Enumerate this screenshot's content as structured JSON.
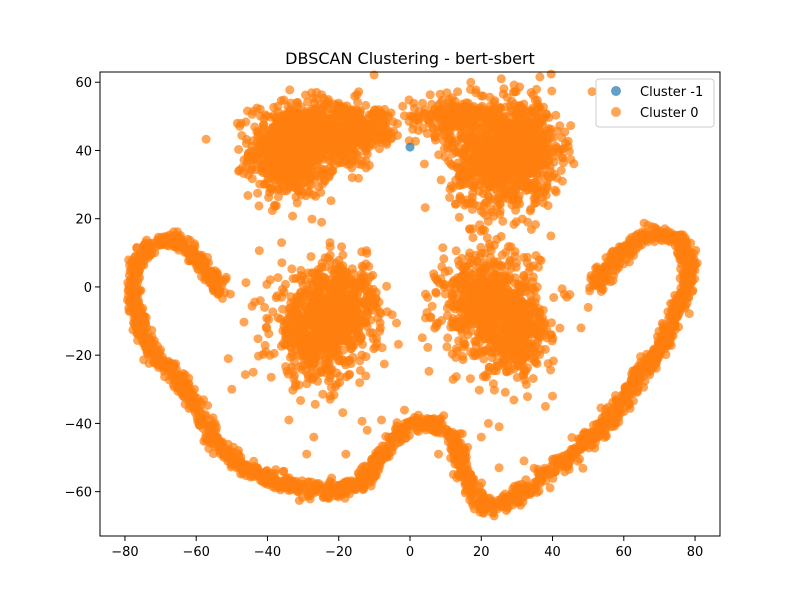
{
  "chart_data": {
    "type": "scatter",
    "title": "DBSCAN Clustering - bert-sbert",
    "xlabel": "",
    "ylabel": "",
    "xlim": [
      -87,
      87
    ],
    "ylim": [
      -73,
      63
    ],
    "xticks": [
      -80,
      -60,
      -40,
      -20,
      0,
      20,
      40,
      60,
      80
    ],
    "yticks": [
      -60,
      -40,
      -20,
      0,
      20,
      40,
      60
    ],
    "xtick_labels": [
      "−80",
      "−60",
      "−40",
      "−20",
      "0",
      "20",
      "40",
      "60",
      "80"
    ],
    "ytick_labels": [
      "−60",
      "−40",
      "−20",
      "0",
      "20",
      "40",
      "60"
    ],
    "grid": false,
    "legend_position": "top-right",
    "series": [
      {
        "name": "Cluster -1",
        "color": "#1f77b4",
        "points": [
          [
            0,
            41
          ]
        ]
      },
      {
        "name": "Cluster 0",
        "color": "#ff7f0e",
        "blobs": [
          {
            "cx": -33,
            "cy": 40,
            "sx": 6,
            "sy": 7,
            "n": 700
          },
          {
            "cx": -20,
            "cy": 45,
            "sx": 6,
            "sy": 5,
            "n": 350
          },
          {
            "cx": -10,
            "cy": 47,
            "sx": 4,
            "sy": 3,
            "n": 100
          },
          {
            "cx": 12,
            "cy": 50,
            "sx": 6,
            "sy": 3,
            "n": 200
          },
          {
            "cx": 25,
            "cy": 38,
            "sx": 7,
            "sy": 8,
            "n": 750
          },
          {
            "cx": 33,
            "cy": 42,
            "sx": 5,
            "sy": 7,
            "n": 300
          },
          {
            "cx": -25,
            "cy": -12,
            "sx": 7,
            "sy": 8,
            "n": 650
          },
          {
            "cx": -18,
            "cy": -5,
            "sx": 5,
            "sy": 6,
            "n": 250
          },
          {
            "cx": 22,
            "cy": -5,
            "sx": 7,
            "sy": 8,
            "n": 650
          },
          {
            "cx": 30,
            "cy": -15,
            "sx": 5,
            "sy": 6,
            "n": 250
          }
        ],
        "curves": [
          {
            "points": [
              [
                -52,
                -2
              ],
              [
                -56,
                3
              ],
              [
                -60,
                9
              ],
              [
                -66,
                14
              ],
              [
                -72,
                13
              ],
              [
                -76,
                8
              ],
              [
                -78,
                0
              ],
              [
                -76,
                -10
              ],
              [
                -72,
                -20
              ],
              [
                -66,
                -25
              ],
              [
                -60,
                -35
              ],
              [
                -55,
                -45
              ],
              [
                -48,
                -52
              ],
              [
                -40,
                -56
              ],
              [
                -30,
                -59
              ],
              [
                -20,
                -60
              ],
              [
                -12,
                -56
              ],
              [
                -7,
                -47
              ],
              [
                0,
                -40
              ],
              [
                8,
                -40
              ],
              [
                13,
                -45
              ],
              [
                15,
                -55
              ],
              [
                20,
                -64
              ],
              [
                28,
                -63
              ],
              [
                35,
                -57
              ],
              [
                45,
                -50
              ],
              [
                55,
                -40
              ],
              [
                62,
                -30
              ],
              [
                70,
                -18
              ],
              [
                76,
                -5
              ],
              [
                79,
                5
              ],
              [
                76,
                14
              ],
              [
                68,
                16
              ],
              [
                60,
                11
              ],
              [
                55,
                5
              ],
              [
                52,
                0
              ]
            ],
            "n": 2200,
            "spread": 1.2
          }
        ],
        "outliers": [
          [
            -44,
            -25
          ],
          [
            -51,
            -21
          ],
          [
            -50,
            -30
          ],
          [
            -34,
            -39
          ],
          [
            -27,
            -44
          ],
          [
            -22,
            -56
          ],
          [
            -18,
            -49
          ],
          [
            -29,
            -49
          ],
          [
            -20,
            -13
          ],
          [
            -12,
            -42
          ],
          [
            -8,
            -39
          ],
          [
            -6,
            -44
          ],
          [
            -3,
            -43
          ],
          [
            8,
            -49
          ],
          [
            14,
            -43
          ],
          [
            20,
            -44
          ],
          [
            25,
            -53
          ],
          [
            32,
            -51
          ],
          [
            38,
            -35
          ],
          [
            40,
            -32
          ],
          [
            48,
            -12
          ],
          [
            44,
            -3
          ],
          [
            50,
            -6
          ],
          [
            -42,
            -4
          ],
          [
            -36,
            -3
          ],
          [
            -34,
            -8
          ],
          [
            -46,
            35
          ],
          [
            -38,
            24
          ],
          [
            33,
            19
          ],
          [
            39,
            32
          ],
          [
            14,
            33
          ],
          [
            20,
            56
          ],
          [
            34,
            57
          ],
          [
            28,
            3
          ],
          [
            35,
            -1
          ],
          [
            22,
            -40
          ],
          [
            25,
            -41
          ]
        ]
      }
    ]
  }
}
